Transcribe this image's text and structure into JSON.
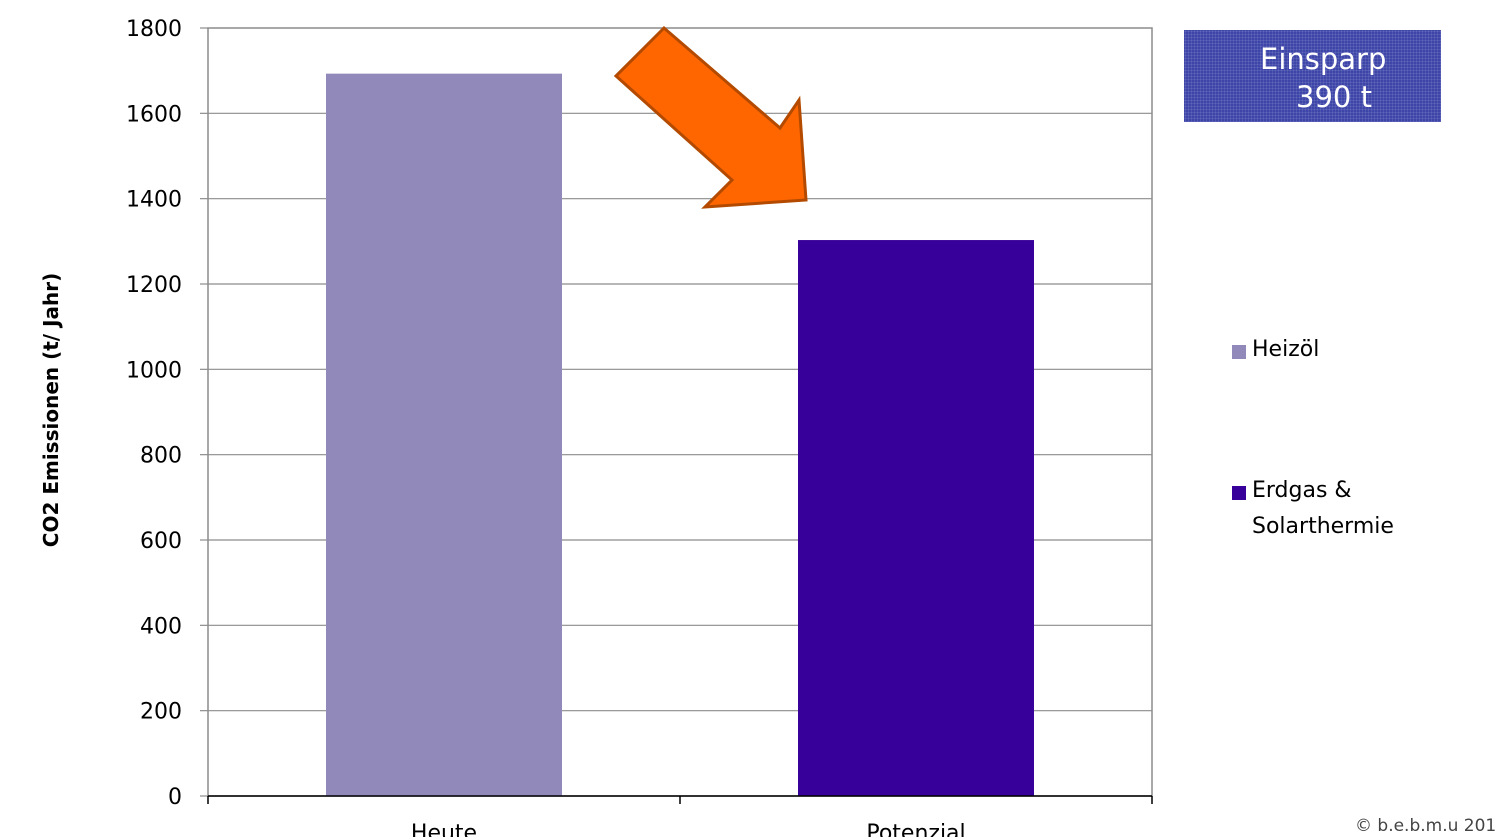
{
  "chart_data": {
    "type": "bar",
    "categories": [
      "Heute",
      "Potenzial"
    ],
    "values": [
      1693,
      1303
    ],
    "ylabel": "CO2 Emissionen (t/ Jahr)",
    "xlabel": "",
    "ylim": [
      0,
      1800
    ],
    "yticks": [
      0,
      200,
      400,
      600,
      800,
      1000,
      1200,
      1400,
      1600,
      1800
    ],
    "bar_colors": [
      "#9089b9",
      "#37009a"
    ],
    "grid": true,
    "legend": {
      "placement": "right",
      "entries": [
        {
          "label": "Heizöl",
          "color": "#9089b9"
        },
        {
          "label_line1": "Erdgas &",
          "label_line2": "Solarthermie",
          "color": "#37009a"
        }
      ]
    },
    "annotation": {
      "line1": "Einsparp",
      "line2": "390 t",
      "box_color": "#3d45a8",
      "arrow_color": "#ff6600",
      "arrow_icon": "down-right-arrow-icon"
    }
  },
  "footer": {
    "copyright": "© b.e.b.m.u 201"
  }
}
